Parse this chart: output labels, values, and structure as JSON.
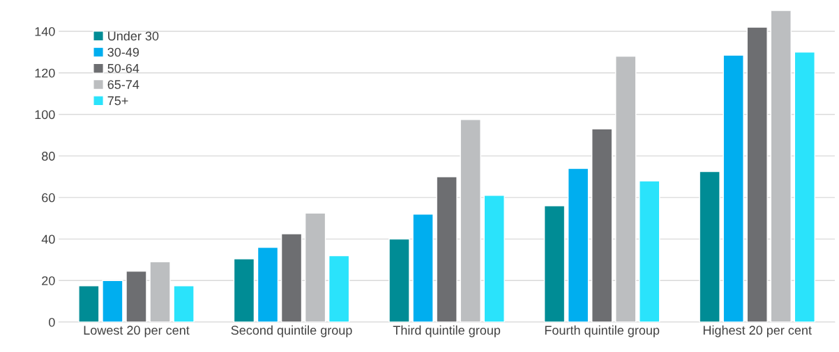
{
  "chart_data": {
    "type": "bar",
    "categories": [
      "Lowest 20 per cent",
      "Second quintile group",
      "Third quintile group",
      "Fourth quintile group",
      "Highest 20 per cent"
    ],
    "series": [
      {
        "name": "Under 30",
        "color": "#008c95",
        "values": [
          17.5,
          30.5,
          40,
          56,
          72.5
        ]
      },
      {
        "name": "30-49",
        "color": "#00aeef",
        "values": [
          20,
          36,
          52,
          74,
          128.5
        ]
      },
      {
        "name": "50-64",
        "color": "#6d6e71",
        "values": [
          24.5,
          42.5,
          70,
          93,
          142
        ]
      },
      {
        "name": "65-74",
        "color": "#bcbec0",
        "values": [
          29,
          52.5,
          97.5,
          128,
          150
        ]
      },
      {
        "name": "75+",
        "color": "#2ae3fb",
        "values": [
          17.5,
          32,
          61,
          68,
          130
        ]
      }
    ],
    "ylim": [
      0,
      150
    ],
    "yticks": [
      0,
      20,
      40,
      60,
      80,
      100,
      120,
      140
    ],
    "grid": "y",
    "legend": "top left"
  }
}
